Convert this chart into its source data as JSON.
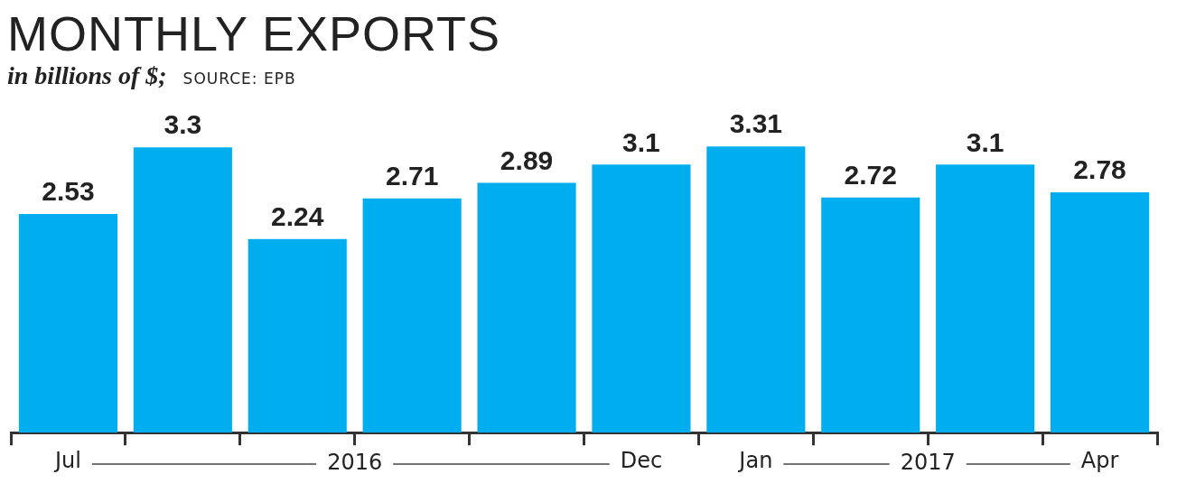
{
  "chart_data": {
    "type": "bar",
    "title": "MONTHLY EXPORTS",
    "subtitle": "in billions of $;",
    "annotations": [
      "SOURCE: EPB",
      "2016",
      "2017"
    ],
    "categories": [
      "Jul",
      null,
      null,
      null,
      null,
      "Dec",
      "Jan",
      null,
      null,
      "Apr"
    ],
    "values": [
      2.53,
      3.3,
      2.24,
      2.71,
      2.89,
      3.1,
      3.31,
      2.72,
      3.1,
      2.78
    ],
    "color": "#00aeef",
    "data_labels": true,
    "grid": false,
    "legend": false,
    "tick_labels": "x"
  }
}
